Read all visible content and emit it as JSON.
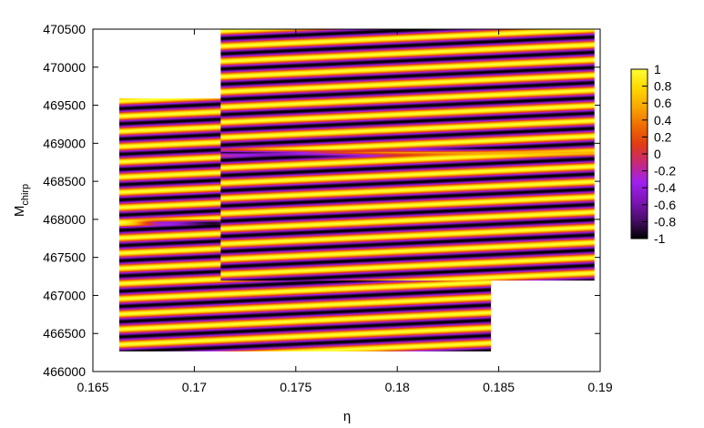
{
  "chart_data": {
    "type": "heatmap",
    "title": "",
    "xlabel": "η",
    "ylabel": "M",
    "ylabel_subscript": "chirp",
    "xlim": [
      0.165,
      0.19
    ],
    "ylim": [
      466000,
      470500
    ],
    "x_ticks": [
      "0.165",
      "0.17",
      "0.175",
      "0.18",
      "0.185",
      "0.19"
    ],
    "y_ticks": [
      "466000",
      "466500",
      "467000",
      "467500",
      "468000",
      "468500",
      "469000",
      "469500",
      "470000",
      "470500"
    ],
    "colorbar": {
      "range": [
        -1,
        1
      ],
      "ticks": [
        "1",
        "0.8",
        "0.6",
        "0.4",
        "0.2",
        "0",
        "-0.2",
        "-0.4",
        "-0.6",
        "-0.8",
        "-1"
      ],
      "palette": [
        "#000000",
        "#4b0d6b",
        "#7e14b8",
        "#a020f0",
        "#c8287a",
        "#e03c14",
        "#f06c00",
        "#f9a800",
        "#ffd700",
        "#ffff33"
      ]
    },
    "regions": [
      {
        "name": "lower-left",
        "eta_range": [
          0.1663,
          0.1846
        ],
        "mchirp_range": [
          466270,
          469590
        ],
        "fringe_period_mchirp": 200,
        "fringe_slope_mchirp_per_eta": 12000,
        "ridge_center_mchirp": 467960,
        "ridge_color_sequence": [
          1,
          -0.5,
          -1,
          0.6,
          1,
          -0.5,
          -1,
          0.6
        ]
      },
      {
        "name": "upper-right",
        "eta_range": [
          0.1713,
          0.1897
        ],
        "mchirp_range": [
          467200,
          470510
        ],
        "fringe_period_mchirp": 200,
        "fringe_slope_mchirp_per_eta": 12000,
        "ridge_center_mchirp": 468880,
        "ridge_color_sequence": [
          -1,
          0.6
        ]
      }
    ]
  }
}
